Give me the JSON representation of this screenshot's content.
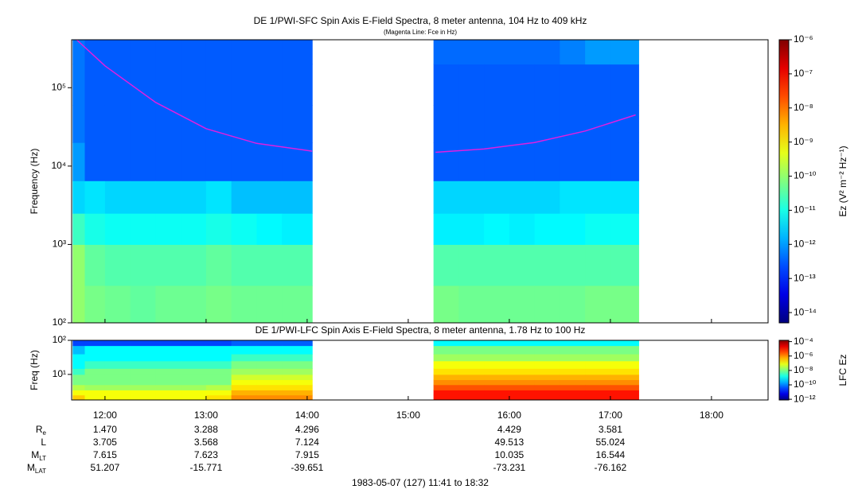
{
  "chart_data": [
    {
      "type": "spectrogram",
      "title": "DE 1/PWI-SFC  Spin Axis E-Field Spectra, 8 meter antenna, 104 Hz to 409 kHz",
      "subtitle": "(Magenta Line: Fce in Hz)",
      "y_label": "Frequency (Hz)",
      "colorbar_label": "Ez (V² m⁻² Hz⁻¹)",
      "y_scale": "log",
      "z_scale": "log",
      "colormap": "jet",
      "xlim": [
        11.67,
        18.56
      ],
      "ylim": [
        100,
        409000
      ],
      "zlim": [
        5e-15,
        1e-06
      ],
      "yticks": [
        {
          "value": 100,
          "label": "10²"
        },
        {
          "value": 1000,
          "label": "10³"
        },
        {
          "value": 10000,
          "label": "10⁴"
        },
        {
          "value": 100000,
          "label": "10⁵"
        }
      ],
      "zticks": [
        {
          "value": 1e-06,
          "label": "10⁻⁶"
        },
        {
          "value": 1e-07,
          "label": "10⁻⁷"
        },
        {
          "value": 1e-08,
          "label": "10⁻⁸"
        },
        {
          "value": 1e-09,
          "label": "10⁻⁹"
        },
        {
          "value": 1e-10,
          "label": "10⁻¹⁰"
        },
        {
          "value": 1e-11,
          "label": "10⁻¹¹"
        },
        {
          "value": 1e-12,
          "label": "10⁻¹²"
        },
        {
          "value": 1e-13,
          "label": "10⁻¹³"
        },
        {
          "value": 1e-14,
          "label": "10⁻¹⁴"
        }
      ],
      "y_edges": [
        100,
        300,
        1000,
        2500,
        6500,
        20000,
        60000,
        200000,
        409000
      ],
      "segments": [
        {
          "x_edges": [
            11.68,
            11.8,
            12.0,
            12.25,
            12.5,
            12.75,
            13.0,
            13.25,
            13.5,
            13.75,
            14.05
          ],
          "z": [
            [
              1e-10,
              1e-10,
              2e-11,
              3e-12,
              1e-12,
              5e-13,
              5e-13,
              5e-13
            ],
            [
              6e-11,
              4e-11,
              1e-11,
              4e-12,
              3e-13,
              3e-13,
              3e-13,
              3e-13
            ],
            [
              5e-11,
              3e-11,
              8e-12,
              3e-12,
              3e-13,
              3e-13,
              3e-13,
              3e-13
            ],
            [
              4e-11,
              3e-11,
              8e-12,
              3e-12,
              3e-13,
              3e-13,
              3e-13,
              3e-13
            ],
            [
              5e-11,
              3e-11,
              8e-12,
              3e-12,
              3e-13,
              3e-13,
              3e-13,
              3e-13
            ],
            [
              5e-11,
              3e-11,
              8e-12,
              3e-12,
              3e-13,
              3e-13,
              3e-13,
              3e-13
            ],
            [
              6e-11,
              4e-11,
              1e-11,
              4e-12,
              3e-13,
              3e-13,
              3e-13,
              3e-13
            ],
            [
              5e-11,
              3e-11,
              8e-12,
              2e-12,
              3e-13,
              3e-13,
              3e-13,
              3e-13
            ],
            [
              5e-11,
              3e-11,
              6e-12,
              2e-12,
              3e-13,
              3e-13,
              3e-13,
              3e-13
            ],
            [
              5e-11,
              3e-11,
              5e-12,
              2e-12,
              3e-13,
              3e-13,
              3e-13,
              3e-13
            ]
          ]
        },
        {
          "x_edges": [
            15.25,
            15.5,
            15.75,
            16.0,
            16.25,
            16.5,
            16.75,
            17.0,
            17.28
          ],
          "z": [
            [
              6e-11,
              3e-11,
              5e-12,
              3e-12,
              3e-13,
              3e-13,
              3e-13,
              4e-13
            ],
            [
              5e-11,
              3e-11,
              5e-12,
              3e-12,
              3e-13,
              3e-13,
              3e-13,
              4e-13
            ],
            [
              5e-11,
              3e-11,
              6e-12,
              3e-12,
              3e-13,
              3e-13,
              3e-13,
              4e-13
            ],
            [
              5e-11,
              3e-11,
              5e-12,
              3e-12,
              3e-13,
              3e-13,
              3e-13,
              4e-13
            ],
            [
              5e-11,
              3e-11,
              6e-12,
              3e-12,
              3e-13,
              3e-13,
              3e-13,
              4e-13
            ],
            [
              5e-11,
              3e-11,
              6e-12,
              4e-12,
              3e-13,
              3e-13,
              3e-13,
              6e-13
            ],
            [
              6e-11,
              3e-11,
              8e-12,
              4e-12,
              3e-13,
              3e-13,
              3e-13,
              1e-12
            ],
            [
              6e-11,
              3e-11,
              8e-12,
              4e-12,
              3e-13,
              3e-13,
              3e-13,
              1e-12
            ]
          ]
        }
      ],
      "line": {
        "color": "#e020e0",
        "x": [
          11.72,
          12.0,
          12.5,
          13.0,
          13.5,
          14.05,
          null,
          15.27,
          15.75,
          16.25,
          16.75,
          17.25
        ],
        "y": [
          409000,
          190000,
          65000,
          30000,
          19500,
          15500,
          null,
          15000,
          16500,
          20000,
          28000,
          45000
        ]
      }
    },
    {
      "type": "spectrogram",
      "title": "DE 1/PWI-LFC  Spin Axis E-Field Spectra, 8 meter antenna, 1.78 Hz to 100 Hz",
      "y_label": "Freq (Hz)",
      "colorbar_label": "LFC Ez",
      "y_scale": "log",
      "z_scale": "log",
      "colormap": "jet",
      "xlim": [
        11.67,
        18.56
      ],
      "ylim": [
        1.78,
        100
      ],
      "zlim": [
        8e-13,
        0.00015
      ],
      "xticks": [
        {
          "value": 12,
          "label": "12:00"
        },
        {
          "value": 13,
          "label": "13:00"
        },
        {
          "value": 14,
          "label": "14:00"
        },
        {
          "value": 15,
          "label": "15:00"
        },
        {
          "value": 16,
          "label": "16:00"
        },
        {
          "value": 17,
          "label": "17:00"
        },
        {
          "value": 18,
          "label": "18:00"
        }
      ],
      "yticks": [
        {
          "value": 10,
          "label": "10¹"
        },
        {
          "value": 100,
          "label": "10²"
        }
      ],
      "zticks": [
        {
          "value": 0.0001,
          "label": "10⁻⁴"
        },
        {
          "value": 1e-06,
          "label": "10⁻⁶"
        },
        {
          "value": 1e-08,
          "label": "10⁻⁸"
        },
        {
          "value": 1e-10,
          "label": "10⁻¹⁰"
        },
        {
          "value": 1e-12,
          "label": "10⁻¹²"
        }
      ],
      "y_edges": [
        1.78,
        2.5,
        3.5,
        5,
        7,
        10,
        15,
        25,
        40,
        70,
        100
      ],
      "segments": [
        {
          "x_edges": [
            11.68,
            11.8,
            12.0,
            12.25,
            12.5,
            12.75,
            13.0,
            13.25,
            13.5,
            13.75,
            14.05
          ],
          "z": [
            [
              3e-07,
              1e-07,
              3e-08,
              1e-08,
              1e-08,
              3e-09,
              1e-09,
              1e-09,
              3e-10,
              3e-11
            ],
            [
              1e-07,
              1e-07,
              2e-08,
              1e-08,
              1e-08,
              1e-08,
              3e-09,
              1e-09,
              1e-09,
              3e-11
            ],
            [
              1e-07,
              1e-07,
              2e-08,
              1e-08,
              1e-08,
              1e-08,
              3e-09,
              1e-09,
              1e-09,
              3e-11
            ],
            [
              1e-07,
              1e-07,
              2e-08,
              1e-08,
              1e-08,
              1e-08,
              3e-09,
              1e-09,
              1e-09,
              3e-11
            ],
            [
              1e-07,
              1e-07,
              2e-08,
              1e-08,
              1e-08,
              1e-08,
              3e-09,
              1e-09,
              1e-09,
              3e-11
            ],
            [
              1e-07,
              1e-07,
              2e-08,
              1e-08,
              1e-08,
              1e-08,
              3e-09,
              1e-09,
              1e-09,
              3e-11
            ],
            [
              2e-07,
              1e-07,
              3e-08,
              1e-08,
              1e-08,
              1e-08,
              3e-09,
              1e-09,
              1e-09,
              3e-11
            ],
            [
              1e-06,
              5e-07,
              2e-07,
              1e-07,
              5e-08,
              2e-08,
              1e-08,
              3e-09,
              1e-09,
              5e-11
            ],
            [
              1e-06,
              5e-07,
              2e-07,
              1e-07,
              5e-08,
              2e-08,
              1e-08,
              3e-09,
              1e-09,
              5e-11
            ],
            [
              1e-06,
              5e-07,
              2e-07,
              1e-07,
              5e-08,
              2e-08,
              1e-08,
              3e-09,
              1e-09,
              5e-11
            ]
          ]
        },
        {
          "x_edges": [
            15.25,
            15.5,
            15.75,
            16.0,
            16.25,
            16.5,
            16.75,
            17.0,
            17.28
          ],
          "z": [
            [
              1e-05,
              1e-05,
              3e-06,
              1e-06,
              5e-07,
              2e-07,
              1e-07,
              2e-08,
              1e-08,
              1e-09
            ],
            [
              1e-05,
              1e-05,
              3e-06,
              1e-06,
              5e-07,
              2e-07,
              1e-07,
              2e-08,
              1e-08,
              1e-09
            ],
            [
              1e-05,
              1e-05,
              3e-06,
              1e-06,
              5e-07,
              2e-07,
              1e-07,
              2e-08,
              1e-08,
              1e-09
            ],
            [
              1e-05,
              1e-05,
              3e-06,
              1e-06,
              5e-07,
              2e-07,
              1e-07,
              2e-08,
              1e-08,
              1e-09
            ],
            [
              1e-05,
              1e-05,
              3e-06,
              1e-06,
              5e-07,
              2e-07,
              1e-07,
              2e-08,
              1e-08,
              1e-09
            ],
            [
              1e-05,
              1e-05,
              3e-06,
              1e-06,
              5e-07,
              2e-07,
              1e-07,
              2e-08,
              1e-08,
              1e-09
            ],
            [
              1e-05,
              1e-05,
              3e-06,
              1e-06,
              5e-07,
              2e-07,
              1e-07,
              2e-08,
              1e-08,
              1e-09
            ],
            [
              1e-05,
              1e-05,
              3e-06,
              1e-06,
              5e-07,
              2e-07,
              1e-07,
              2e-08,
              1e-08,
              1e-09
            ]
          ]
        }
      ]
    }
  ],
  "ephemeris": {
    "x": [
      12,
      13,
      14,
      16,
      17
    ],
    "rows": [
      {
        "label": "R",
        "sub": "e",
        "values": [
          "1.470",
          "3.288",
          "4.296",
          "4.429",
          "3.581"
        ]
      },
      {
        "label": "L",
        "values": [
          "3.705",
          "3.568",
          "7.124",
          "49.513",
          "55.024"
        ]
      },
      {
        "label": "M",
        "sub": "LT",
        "values": [
          "7.615",
          "7.623",
          "7.915",
          "10.035",
          "16.544"
        ]
      },
      {
        "label": "M",
        "sub": "LAT",
        "values": [
          "51.207",
          "-15.771",
          "-39.651",
          "-73.231",
          "-76.162"
        ]
      }
    ]
  },
  "footer": "1983-05-07 (127) 11:41 to 18:32"
}
